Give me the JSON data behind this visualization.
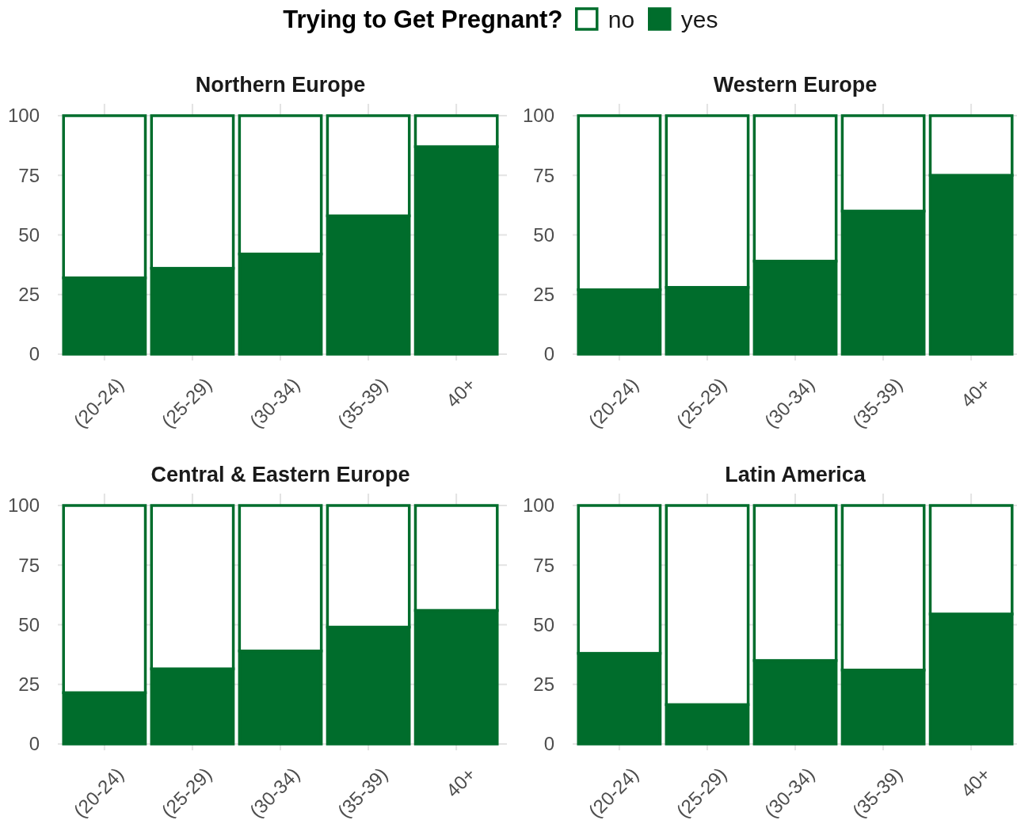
{
  "chart_data": [
    {
      "type": "bar",
      "title": "Northern Europe",
      "legend_title": "Trying to Get Pregnant?",
      "legend": "top",
      "stacked": true,
      "grid": true,
      "categories": [
        "(20-24)",
        "(25-29)",
        "(30-34)",
        "(35-39)",
        "40+"
      ],
      "ylim": [
        0,
        100
      ],
      "yticks": [
        0,
        25,
        50,
        75,
        100
      ],
      "series": [
        {
          "name": "yes",
          "color": "#006d2c",
          "values": [
            32,
            36,
            42,
            58,
            87
          ]
        },
        {
          "name": "no",
          "color": "#ffffff",
          "values": [
            68,
            64,
            58,
            42,
            13
          ]
        }
      ]
    },
    {
      "type": "bar",
      "title": "Western Europe",
      "stacked": true,
      "grid": true,
      "categories": [
        "(20-24)",
        "(25-29)",
        "(30-34)",
        "(35-39)",
        "40+"
      ],
      "ylim": [
        0,
        100
      ],
      "yticks": [
        0,
        25,
        50,
        75,
        100
      ],
      "series": [
        {
          "color": "#006d2c",
          "values": [
            27,
            28,
            39,
            60,
            75
          ]
        },
        {
          "color": "#ffffff",
          "values": [
            73,
            72,
            61,
            40,
            25
          ]
        }
      ]
    },
    {
      "type": "bar",
      "title": "Central & Eastern Europe",
      "stacked": true,
      "grid": true,
      "categories": [
        "(20-24)",
        "(25-29)",
        "(30-34)",
        "(35-39)",
        "40+"
      ],
      "ylim": [
        0,
        100
      ],
      "yticks": [
        0,
        25,
        50,
        75,
        100
      ],
      "series": [
        {
          "color": "#006d2c",
          "values": [
            21.5,
            31.5,
            39,
            49,
            56
          ]
        },
        {
          "color": "#ffffff",
          "values": [
            78.5,
            68.5,
            61,
            51,
            44
          ]
        }
      ]
    },
    {
      "type": "bar",
      "title": "Latin America",
      "stacked": true,
      "grid": true,
      "categories": [
        "(20-24)",
        "(25-29)",
        "(30-34)",
        "(35-39)",
        "40+"
      ],
      "ylim": [
        0,
        100
      ],
      "yticks": [
        0,
        25,
        50,
        75,
        100
      ],
      "series": [
        {
          "color": "#006d2c",
          "values": [
            38,
            16.5,
            35,
            31,
            54.5
          ]
        },
        {
          "color": "#ffffff",
          "values": [
            62,
            83.5,
            65,
            69,
            45.5
          ]
        }
      ]
    }
  ]
}
